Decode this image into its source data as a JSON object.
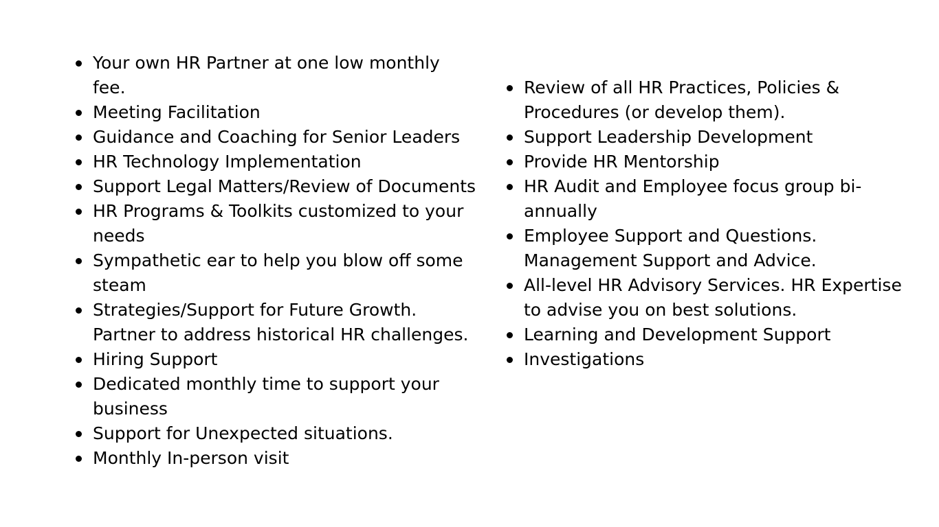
{
  "left_column": {
    "items": [
      "Your own HR Partner at one low monthly fee.",
      "Meeting Facilitation",
      "Guidance and Coaching for Senior Leaders",
      "HR Technology Implementation",
      "Support Legal Matters/Review of Documents",
      "HR Programs & Toolkits customized to your needs",
      "Sympathetic ear to help you blow off some steam",
      "Strategies/Support for Future Growth. Partner to address historical HR challenges.",
      "Hiring Support",
      "Dedicated monthly time to support your business",
      "Support for Unexpected situations.",
      "Monthly In-person visit"
    ]
  },
  "right_column": {
    "items": [
      "Review of all HR Practices, Policies & Procedures (or develop them).",
      "Support Leadership Development",
      "Provide HR Mentorship",
      "HR Audit and Employee focus group bi-annually",
      "Employee Support and Questions. Management Support and Advice.",
      "All-level HR Advisory Services. HR Expertise to advise you on best solutions.",
      "Learning and Development Support",
      "Investigations"
    ]
  }
}
